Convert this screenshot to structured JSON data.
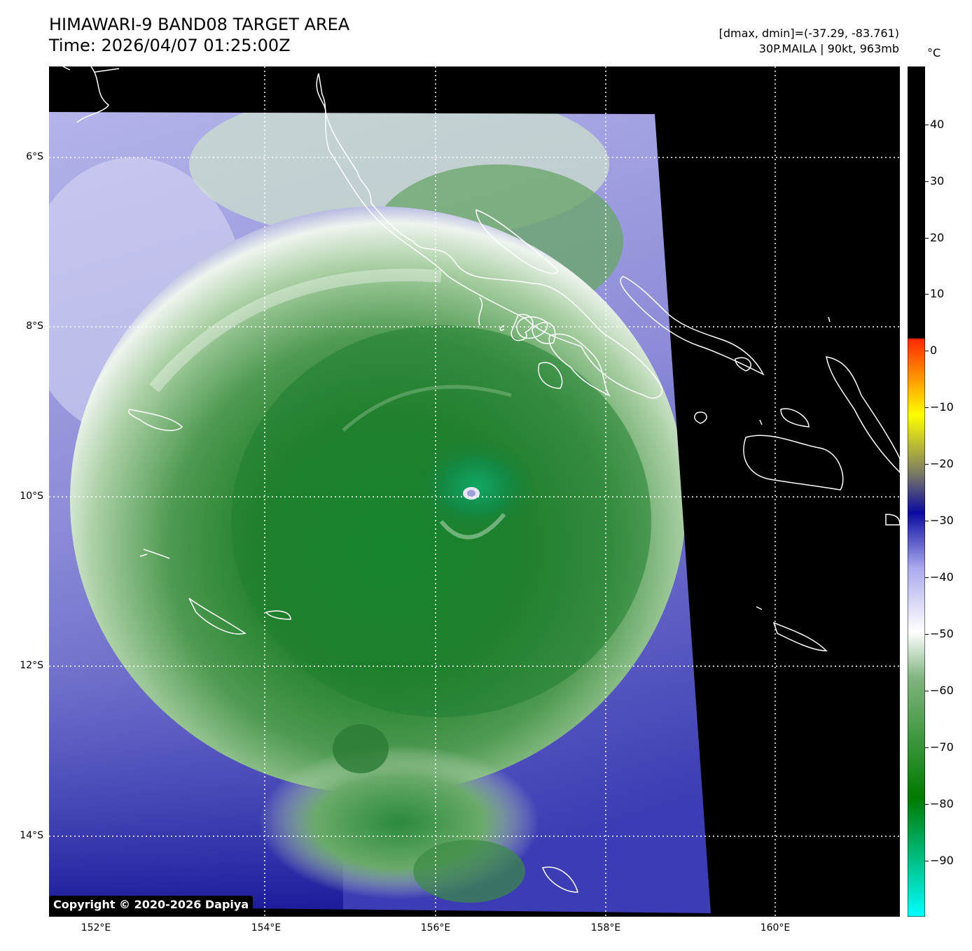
{
  "title": {
    "line1": "HIMAWARI-9 BAND08 TARGET AREA",
    "line2": "Time: 2026/04/07 01:25:00Z"
  },
  "meta": {
    "range": "[dmax, dmin]=(-37.29, -83.761)",
    "storm": "30P.MAILA | 90kt, 963mb"
  },
  "copyright": "Copyright © 2020-2026 Dapiya",
  "map": {
    "lat_labels": [
      "6°S",
      "8°S",
      "10°S",
      "12°S",
      "14°S"
    ],
    "lon_labels": [
      "152°E",
      "154°E",
      "156°E",
      "158°E",
      "160°E"
    ],
    "grid": "dotted white",
    "no_data_color": "#000000",
    "storm_center": {
      "lat": -9.9,
      "lon": 156.4
    }
  },
  "colorbar": {
    "unit": "°C",
    "ticks": [
      "40",
      "30",
      "20",
      "10",
      "0",
      "−10",
      "−20",
      "−30",
      "−40",
      "−50",
      "−60",
      "−70",
      "−80",
      "−90"
    ],
    "colors": {
      "warm": "#000000",
      "red": "#ff2a00",
      "yellow": "#ffff00",
      "gray": "#777766",
      "blue": "#0a0aa0",
      "lavender": "#aaaaee",
      "white": "#ffffff",
      "green": "#007a00",
      "cyan": "#00ffff"
    }
  }
}
